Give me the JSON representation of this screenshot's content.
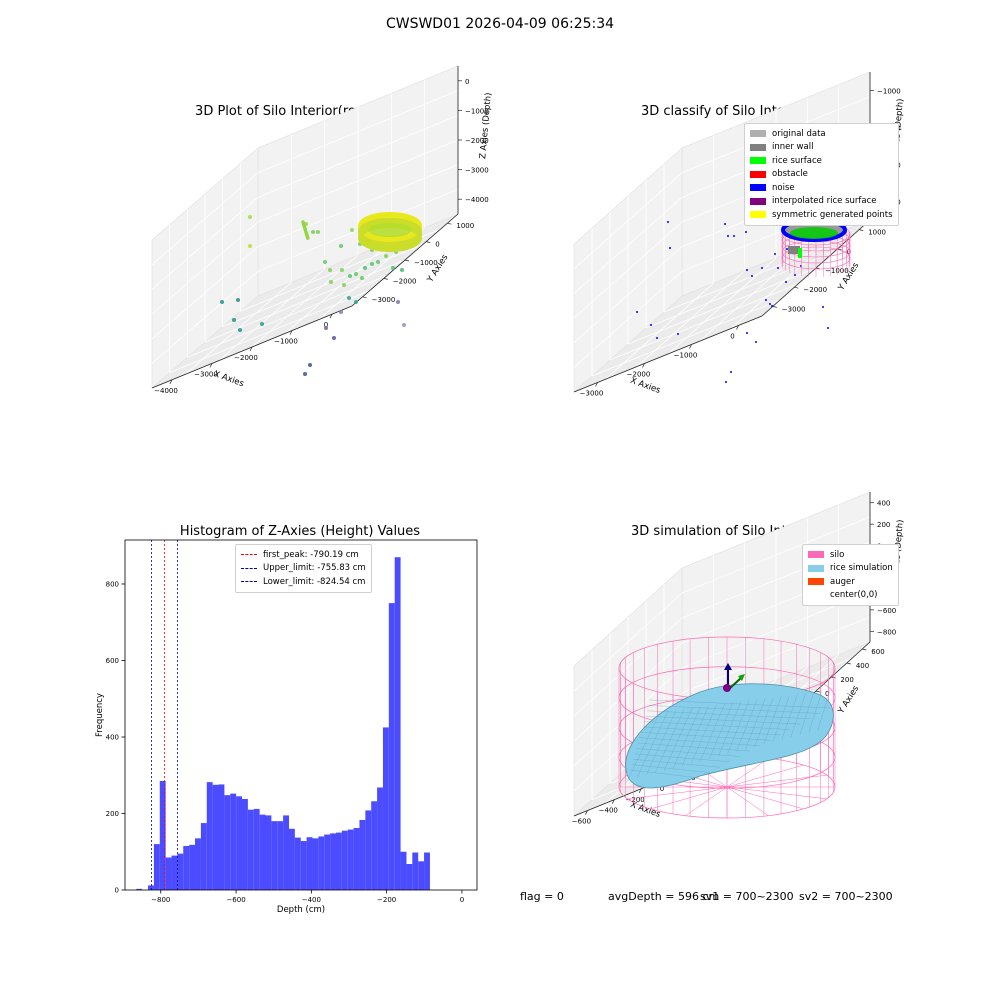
{
  "figure": {
    "suptitle": "CWSWD01 2026-04-09 06:25:34"
  },
  "chart_data": [
    {
      "type": "scatter3d",
      "title": "3D Plot of Silo Interior(row data)",
      "xlabel": "X Axies",
      "ylabel": "Y Axies",
      "zlabel": "Z Axies (Depth)",
      "xticks": [
        "−4000",
        "−3000",
        "−2000",
        "−1000",
        "0"
      ],
      "yticks": [
        "1000",
        "0",
        "−1000",
        "−2000",
        "−3000"
      ],
      "zticks": [
        "0",
        "−1000",
        "−2000",
        "−3000",
        "−4000"
      ],
      "colormap": "viridis",
      "grid": true
    },
    {
      "type": "scatter3d",
      "title": "3D classify of Silo Interior",
      "xlabel": "X Axies",
      "ylabel": "Y Axies",
      "zlabel": "Z Axies (Depth)",
      "xticks": [
        "−3000",
        "−2000",
        "−1000",
        "0"
      ],
      "yticks": [
        "1000",
        "0",
        "−1000",
        "−2000",
        "−3000"
      ],
      "zticks": [
        "−1000",
        "−2000",
        "−3000",
        "−4000"
      ],
      "legend_position": "top-right",
      "legend": [
        {
          "label": "original data",
          "color": "#b0b0b0"
        },
        {
          "label": "inner wall",
          "color": "#808080"
        },
        {
          "label": "rice surface",
          "color": "#00ff00"
        },
        {
          "label": "obstacle",
          "color": "#ff0000"
        },
        {
          "label": "noise",
          "color": "#0000ff"
        },
        {
          "label": "interpolated rice surface",
          "color": "#800080"
        },
        {
          "label": "symmetric generated points",
          "color": "#ffff00"
        }
      ],
      "grid": true
    },
    {
      "type": "bar",
      "title": "Histogram of Z-Axies (Height) Values",
      "xlabel": "Depth (cm)",
      "ylabel": "Frequency",
      "xlim": [
        -895,
        40
      ],
      "ylim": [
        0,
        915
      ],
      "xticks": [
        -800,
        -600,
        -400,
        -200,
        0
      ],
      "xtick_labels": [
        "−800",
        "−600",
        "−400",
        "−200",
        "0"
      ],
      "yticks": [
        0,
        200,
        400,
        600,
        800
      ],
      "yticks_labels": [
        "0",
        "200",
        "400",
        "600",
        "800"
      ],
      "bar_color": "#4b4bff",
      "bin_start": -865,
      "bin_width": 15.6,
      "values": [
        3,
        0,
        12,
        120,
        285,
        85,
        90,
        95,
        115,
        118,
        135,
        175,
        282,
        275,
        276,
        248,
        252,
        245,
        238,
        210,
        212,
        197,
        195,
        180,
        180,
        195,
        160,
        137,
        128,
        138,
        135,
        140,
        145,
        148,
        150,
        155,
        158,
        162,
        183,
        208,
        232,
        268,
        425,
        750,
        870,
        100,
        68,
        98,
        75,
        98
      ],
      "vlines": [
        {
          "label": "first_peak: -790.19 cm",
          "x": -790.19,
          "color": "#ff0000"
        },
        {
          "label": "Upper_limit: -755.83 cm",
          "x": -755.83,
          "color": "#0000aa"
        },
        {
          "label": "Lower_limit: -824.54 cm",
          "x": -824.54,
          "color": "#0000aa"
        }
      ],
      "legend_position": "top-center"
    },
    {
      "type": "surface3d",
      "title": "3D simulation of Silo Interior",
      "xlabel": "X Axies",
      "ylabel": "Y Axies",
      "zlabel": "Z Axies (Depth)",
      "xticks": [
        "−600",
        "−400",
        "−200",
        "0",
        "200",
        "400",
        "600"
      ],
      "yticks": [
        "600",
        "400",
        "200",
        "0",
        "−200",
        "−400",
        "−600"
      ],
      "zticks": [
        "400",
        "200",
        "0",
        "−200",
        "−400",
        "−600",
        "−800"
      ],
      "legend_position": "top-right",
      "legend": [
        {
          "label": "silo",
          "color": "#ff69b4"
        },
        {
          "label": "rice simulation",
          "color": "#87ceeb"
        },
        {
          "label": "auger",
          "color": "#ff4500"
        },
        {
          "label": "center(0,0)",
          "color": ""
        }
      ],
      "grid": true
    }
  ],
  "status": {
    "flag": "flag = 0",
    "avg_depth": "avgDepth = 596 cm",
    "sv1": "sv1 = 700~2300",
    "sv2": "sv2 = 700~2300"
  }
}
